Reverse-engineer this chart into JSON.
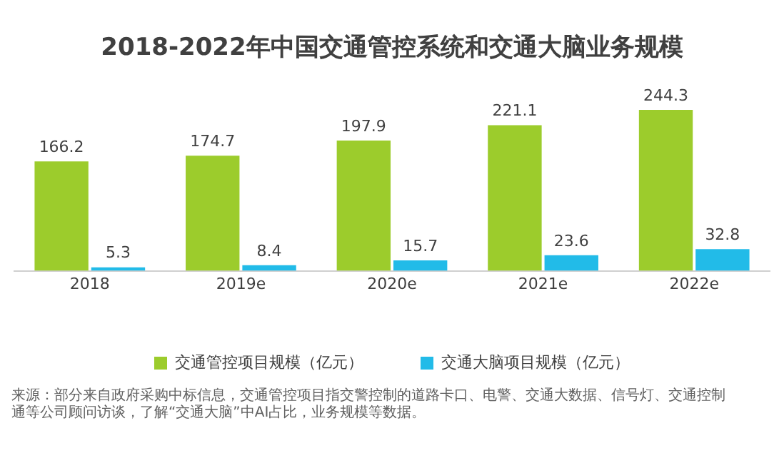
{
  "chart_data": {
    "type": "bar",
    "title": "2018-2022年中国交通管控系统和交通大脑业务规模",
    "categories": [
      "2018",
      "2019e",
      "2020e",
      "2021e",
      "2022e"
    ],
    "series": [
      {
        "name": "交通管控项目规模（亿元）",
        "color": "#9ccc2c",
        "values": [
          166.2,
          174.7,
          197.9,
          221.1,
          244.3
        ]
      },
      {
        "name": "交通大脑项目规模（亿元）",
        "color": "#22bbe8",
        "values": [
          5.3,
          8.4,
          15.7,
          23.6,
          32.8
        ]
      }
    ],
    "data_labels": true,
    "legend": "bottom",
    "grid": false,
    "tick_labels": "x",
    "annotations": [
      "来源：部分来自政府采购中标信息，交通管控项目指交警控制的道路卡口、电警、交通大数据、信号灯、交通控制",
      "通等公司顾问访谈，了解“交通大脑”中AI占比，业务规模等数据。"
    ]
  }
}
